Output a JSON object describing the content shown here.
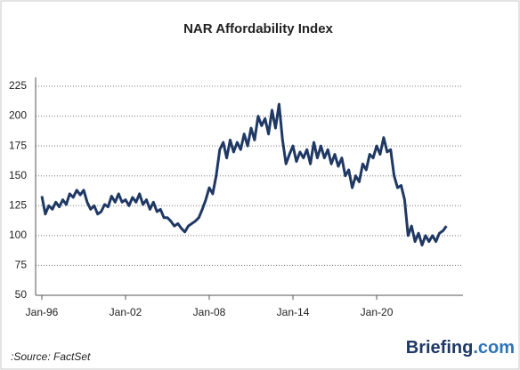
{
  "chart_data": {
    "type": "line",
    "title": "NAR Affordability Index",
    "source": ":Source: FactSet",
    "logo": {
      "name": "Briefing",
      "suffix": ".com"
    },
    "categories": [
      "Jan-96",
      null,
      null,
      null,
      null,
      null,
      null,
      null,
      null,
      null,
      null,
      null,
      null,
      null,
      null,
      null,
      null,
      null,
      null,
      null,
      null,
      null,
      null,
      null,
      "Jan-02",
      null,
      null,
      null,
      null,
      null,
      null,
      null,
      null,
      null,
      null,
      null,
      null,
      null,
      null,
      null,
      null,
      null,
      null,
      null,
      null,
      null,
      null,
      null,
      "Jan-08",
      null,
      null,
      null,
      null,
      null,
      null,
      null,
      null,
      null,
      null,
      null,
      null,
      null,
      null,
      null,
      null,
      null,
      null,
      null,
      null,
      null,
      null,
      null,
      "Jan-14",
      null,
      null,
      null,
      null,
      null,
      null,
      null,
      null,
      null,
      null,
      null,
      null,
      null,
      null,
      null,
      null,
      null,
      null,
      null,
      null,
      null,
      null,
      null,
      "Jan-20",
      null,
      null,
      null,
      null,
      null,
      null,
      null,
      null,
      null,
      null,
      null,
      null,
      null,
      null,
      null,
      null,
      null,
      null,
      null,
      null
    ],
    "values": [
      133,
      118,
      125,
      122,
      128,
      124,
      130,
      126,
      135,
      132,
      138,
      134,
      138,
      128,
      122,
      125,
      118,
      120,
      126,
      124,
      133,
      128,
      135,
      128,
      130,
      125,
      132,
      128,
      135,
      126,
      130,
      122,
      128,
      120,
      122,
      115,
      115,
      112,
      108,
      110,
      106,
      103,
      108,
      110,
      112,
      115,
      122,
      130,
      140,
      135,
      150,
      172,
      178,
      165,
      180,
      170,
      178,
      172,
      185,
      175,
      190,
      180,
      200,
      192,
      198,
      185,
      205,
      190,
      210,
      180,
      160,
      168,
      175,
      162,
      170,
      165,
      172,
      160,
      178,
      165,
      175,
      165,
      172,
      160,
      168,
      158,
      165,
      150,
      155,
      140,
      150,
      145,
      160,
      155,
      168,
      165,
      175,
      168,
      182,
      170,
      172,
      150,
      140,
      142,
      130,
      100,
      108,
      95,
      102,
      92,
      100,
      95,
      100,
      95,
      102,
      104,
      108
    ],
    "color": "#1f3864",
    "ylim": [
      50,
      225
    ],
    "yticks": [
      50,
      75,
      100,
      125,
      150,
      175,
      200,
      225
    ],
    "grid": true
  }
}
